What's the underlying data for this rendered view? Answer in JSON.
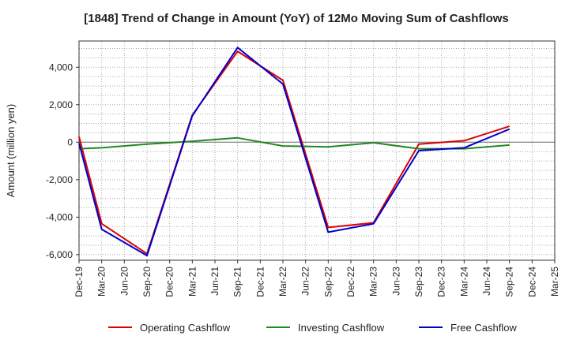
{
  "chart_data": {
    "type": "line",
    "title": "[1848]  Trend of Change in Amount (YoY) of 12Mo Moving Sum of Cashflows",
    "xlabel": "",
    "ylabel": "Amount (million yen)",
    "ylim": [
      -6300,
      5400
    ],
    "yticks": [
      4000,
      2000,
      0,
      -2000,
      -4000,
      -6000
    ],
    "ytick_labels": [
      "4,000",
      "2,000",
      "0",
      "-2,000",
      "-4,000",
      "-6,000"
    ],
    "categories": [
      "Dec-19",
      "Mar-20",
      "Jun-20",
      "Sep-20",
      "Dec-20",
      "Mar-21",
      "Jun-21",
      "Sep-21",
      "Dec-21",
      "Mar-22",
      "Jun-22",
      "Sep-22",
      "Dec-22",
      "Mar-23",
      "Jun-23",
      "Sep-23",
      "Dec-23",
      "Mar-24",
      "Jun-24",
      "Sep-24",
      "Dec-24",
      "Mar-25"
    ],
    "grid": true,
    "legend_position": "bottom",
    "series": [
      {
        "name": "Operating Cashflow",
        "color": "#dd0000",
        "values": [
          300,
          -4350,
          null,
          -5950,
          null,
          1450,
          null,
          4850,
          null,
          3300,
          null,
          -4550,
          null,
          -4300,
          null,
          -100,
          null,
          80,
          null,
          850,
          null,
          null
        ]
      },
      {
        "name": "Investing Cashflow",
        "color": "#228822",
        "values": [
          -350,
          -300,
          null,
          -100,
          null,
          50,
          null,
          230,
          null,
          -200,
          null,
          -250,
          null,
          -30,
          null,
          -350,
          null,
          -350,
          null,
          -150,
          null,
          null
        ]
      },
      {
        "name": "Free Cashflow",
        "color": "#0000cc",
        "values": [
          -50,
          -4650,
          null,
          -6050,
          null,
          1400,
          null,
          5050,
          null,
          3100,
          null,
          -4800,
          null,
          -4350,
          null,
          -450,
          null,
          -300,
          null,
          700,
          null,
          null
        ]
      }
    ]
  }
}
